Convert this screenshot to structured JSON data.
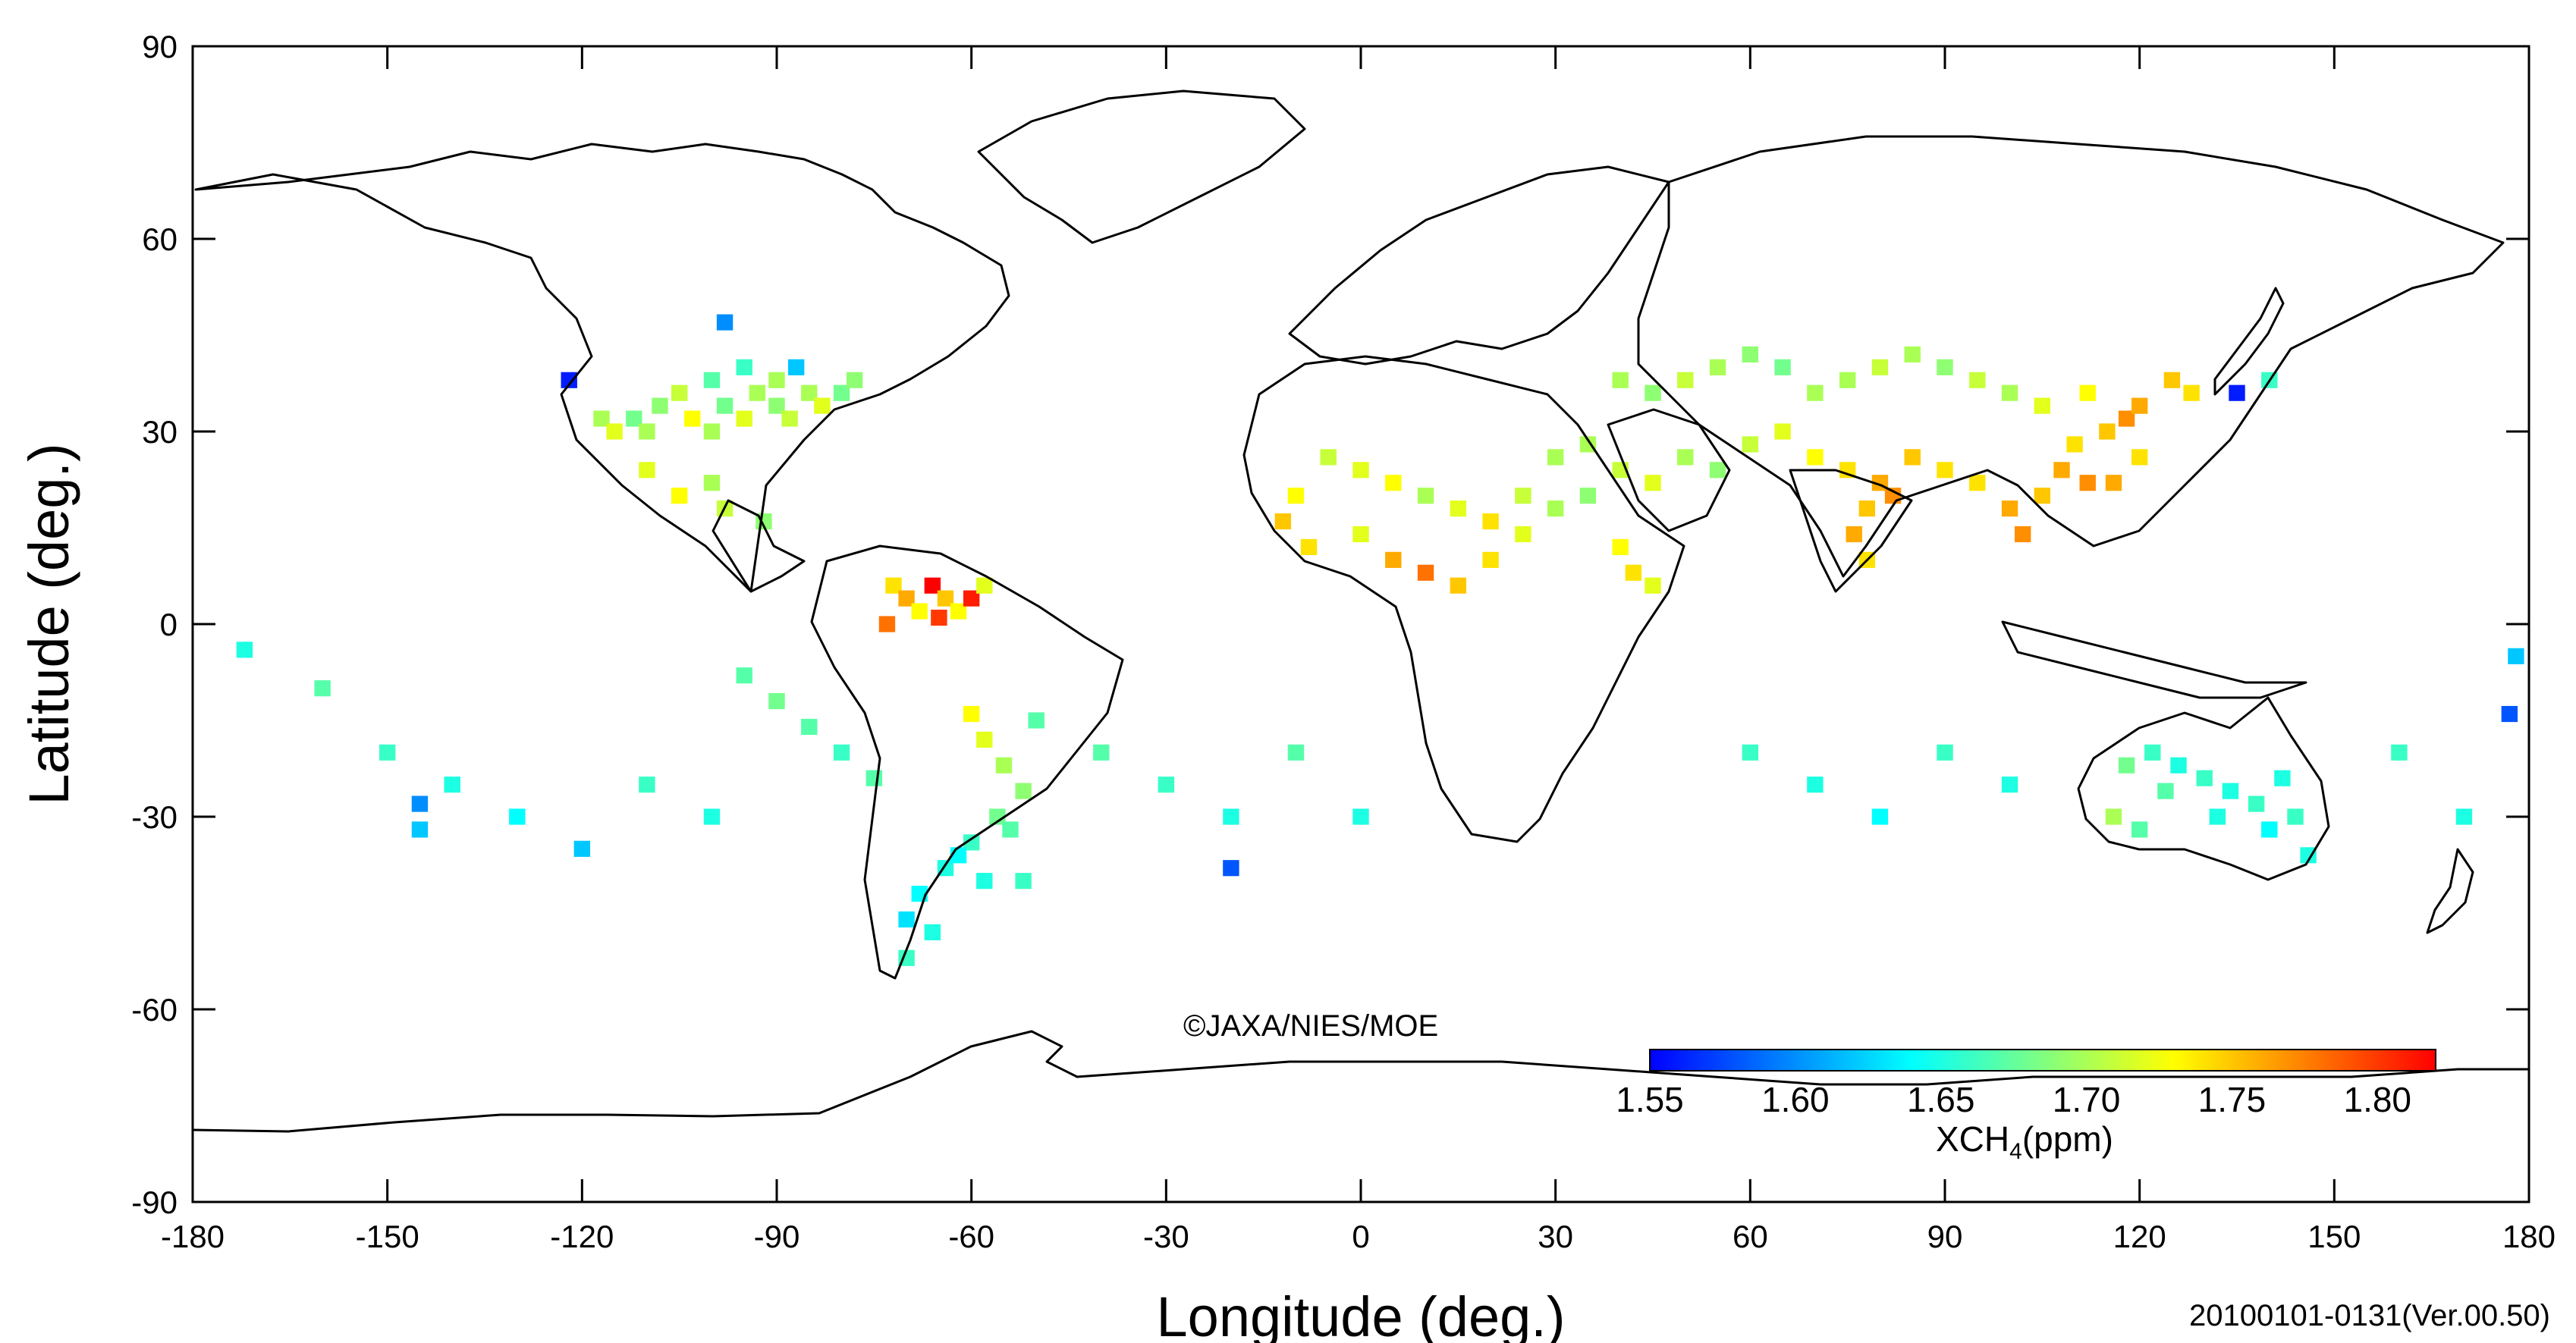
{
  "chart_data": {
    "type": "heatmap",
    "title": "",
    "xlabel": "Longitude (deg.)",
    "ylabel": "Latitude (deg.)",
    "xlim": [
      -180,
      180
    ],
    "ylim": [
      -90,
      90
    ],
    "x_ticks": [
      "-180",
      "-150",
      "-120",
      "-90",
      "-60",
      "-30",
      "0",
      "30",
      "60",
      "90",
      "120",
      "150",
      "180"
    ],
    "y_ticks": [
      "90",
      "60",
      "30",
      "0",
      "-30",
      "-60",
      "-90"
    ],
    "colorbar": {
      "label_main": "XCH",
      "label_sub": "4",
      "label_unit": "(ppm)",
      "range": [
        1.55,
        1.82
      ],
      "tick_labels": [
        "1.55",
        "1.60",
        "1.65",
        "1.70",
        "1.75",
        "1.80"
      ],
      "colors": [
        "#0000ff",
        "#0080ff",
        "#00ffff",
        "#80ff80",
        "#ffff00",
        "#ff8000",
        "#ff0000"
      ]
    },
    "copyright": "©JAXA/NIES/MOE",
    "period_label": "20100101-0131(Ver.00.50)",
    "grid_cell_deg": 2.5,
    "cells": [
      [
        -117,
        32,
        1.7
      ],
      [
        -115,
        30,
        1.72
      ],
      [
        -112,
        32,
        1.68
      ],
      [
        -110,
        30,
        1.7
      ],
      [
        -108,
        34,
        1.69
      ],
      [
        -105,
        36,
        1.71
      ],
      [
        -103,
        32,
        1.73
      ],
      [
        -100,
        30,
        1.7
      ],
      [
        -98,
        34,
        1.68
      ],
      [
        -95,
        32,
        1.72
      ],
      [
        -93,
        36,
        1.7
      ],
      [
        -90,
        34,
        1.69
      ],
      [
        -88,
        32,
        1.71
      ],
      [
        -85,
        36,
        1.7
      ],
      [
        -83,
        34,
        1.72
      ],
      [
        -80,
        36,
        1.68
      ],
      [
        -78,
        38,
        1.69
      ],
      [
        -100,
        38,
        1.67
      ],
      [
        -95,
        40,
        1.66
      ],
      [
        -90,
        38,
        1.7
      ],
      [
        -110,
        24,
        1.72
      ],
      [
        -105,
        20,
        1.73
      ],
      [
        -100,
        22,
        1.7
      ],
      [
        -98,
        18,
        1.71
      ],
      [
        -92,
        16,
        1.69
      ],
      [
        -122,
        38,
        1.56
      ],
      [
        -98,
        47,
        1.6
      ],
      [
        -87,
        40,
        1.62
      ],
      [
        -72,
        6,
        1.74
      ],
      [
        -70,
        4,
        1.76
      ],
      [
        -68,
        2,
        1.73
      ],
      [
        -66,
        6,
        1.82
      ],
      [
        -64,
        4,
        1.75
      ],
      [
        -62,
        2,
        1.73
      ],
      [
        -60,
        4,
        1.81
      ],
      [
        -58,
        6,
        1.72
      ],
      [
        -73,
        0,
        1.78
      ],
      [
        -65,
        1,
        1.8
      ],
      [
        -60,
        -14,
        1.73
      ],
      [
        -58,
        -18,
        1.72
      ],
      [
        -55,
        -22,
        1.7
      ],
      [
        -52,
        -26,
        1.69
      ],
      [
        -56,
        -30,
        1.68
      ],
      [
        -60,
        -34,
        1.66
      ],
      [
        -64,
        -38,
        1.65
      ],
      [
        -68,
        -42,
        1.64
      ],
      [
        -70,
        -46,
        1.63
      ],
      [
        -66,
        -48,
        1.65
      ],
      [
        -70,
        -52,
        1.66
      ],
      [
        -62,
        -36,
        1.64
      ],
      [
        -58,
        -40,
        1.65
      ],
      [
        -54,
        -32,
        1.67
      ],
      [
        -52,
        -40,
        1.66
      ],
      [
        -5,
        26,
        1.71
      ],
      [
        0,
        24,
        1.72
      ],
      [
        5,
        22,
        1.73
      ],
      [
        10,
        20,
        1.7
      ],
      [
        15,
        18,
        1.72
      ],
      [
        20,
        16,
        1.74
      ],
      [
        -10,
        20,
        1.73
      ],
      [
        -12,
        16,
        1.75
      ],
      [
        -8,
        12,
        1.74
      ],
      [
        0,
        14,
        1.72
      ],
      [
        5,
        10,
        1.76
      ],
      [
        10,
        8,
        1.78
      ],
      [
        15,
        6,
        1.75
      ],
      [
        20,
        10,
        1.74
      ],
      [
        25,
        14,
        1.72
      ],
      [
        30,
        18,
        1.7
      ],
      [
        35,
        20,
        1.69
      ],
      [
        40,
        12,
        1.73
      ],
      [
        42,
        8,
        1.74
      ],
      [
        45,
        6,
        1.72
      ],
      [
        25,
        20,
        1.71
      ],
      [
        30,
        26,
        1.7
      ],
      [
        35,
        28,
        1.7
      ],
      [
        40,
        24,
        1.71
      ],
      [
        45,
        22,
        1.72
      ],
      [
        50,
        26,
        1.7
      ],
      [
        55,
        24,
        1.69
      ],
      [
        60,
        28,
        1.71
      ],
      [
        65,
        30,
        1.72
      ],
      [
        70,
        26,
        1.73
      ],
      [
        75,
        24,
        1.74
      ],
      [
        80,
        22,
        1.76
      ],
      [
        85,
        26,
        1.75
      ],
      [
        90,
        24,
        1.74
      ],
      [
        78,
        18,
        1.75
      ],
      [
        76,
        14,
        1.76
      ],
      [
        78,
        10,
        1.74
      ],
      [
        82,
        20,
        1.77
      ],
      [
        95,
        22,
        1.74
      ],
      [
        100,
        18,
        1.76
      ],
      [
        102,
        14,
        1.77
      ],
      [
        105,
        20,
        1.75
      ],
      [
        108,
        24,
        1.76
      ],
      [
        110,
        28,
        1.74
      ],
      [
        115,
        30,
        1.75
      ],
      [
        118,
        32,
        1.77
      ],
      [
        120,
        34,
        1.76
      ],
      [
        112,
        36,
        1.73
      ],
      [
        105,
        34,
        1.72
      ],
      [
        100,
        36,
        1.7
      ],
      [
        95,
        38,
        1.71
      ],
      [
        90,
        40,
        1.69
      ],
      [
        85,
        42,
        1.7
      ],
      [
        80,
        40,
        1.71
      ],
      [
        75,
        38,
        1.7
      ],
      [
        70,
        36,
        1.7
      ],
      [
        65,
        40,
        1.68
      ],
      [
        60,
        42,
        1.69
      ],
      [
        55,
        40,
        1.7
      ],
      [
        50,
        38,
        1.71
      ],
      [
        45,
        36,
        1.69
      ],
      [
        40,
        38,
        1.7
      ],
      [
        125,
        38,
        1.75
      ],
      [
        128,
        36,
        1.74
      ],
      [
        135,
        36,
        1.56
      ],
      [
        140,
        38,
        1.66
      ],
      [
        120,
        26,
        1.74
      ],
      [
        116,
        22,
        1.76
      ],
      [
        112,
        22,
        1.77
      ],
      [
        122,
        -20,
        1.66
      ],
      [
        126,
        -22,
        1.65
      ],
      [
        130,
        -24,
        1.66
      ],
      [
        134,
        -26,
        1.65
      ],
      [
        138,
        -28,
        1.66
      ],
      [
        142,
        -24,
        1.65
      ],
      [
        144,
        -30,
        1.66
      ],
      [
        140,
        -32,
        1.64
      ],
      [
        132,
        -30,
        1.65
      ],
      [
        124,
        -26,
        1.67
      ],
      [
        118,
        -22,
        1.68
      ],
      [
        116,
        -30,
        1.7
      ],
      [
        120,
        -32,
        1.67
      ],
      [
        146,
        -36,
        1.65
      ],
      [
        -172,
        -4,
        1.65
      ],
      [
        -145,
        -28,
        1.6
      ],
      [
        -145,
        -32,
        1.62
      ],
      [
        -120,
        -35,
        1.62
      ],
      [
        -20,
        -38,
        1.58
      ],
      [
        177,
        -14,
        1.58
      ],
      [
        178,
        -5,
        1.62
      ],
      [
        -95,
        -8,
        1.67
      ],
      [
        -90,
        -12,
        1.68
      ],
      [
        -85,
        -16,
        1.67
      ],
      [
        -80,
        -20,
        1.66
      ],
      [
        -75,
        -24,
        1.67
      ],
      [
        -160,
        -10,
        1.67
      ],
      [
        -150,
        -20,
        1.66
      ],
      [
        -140,
        -25,
        1.65
      ],
      [
        -130,
        -30,
        1.64
      ],
      [
        -110,
        -25,
        1.66
      ],
      [
        -100,
        -30,
        1.65
      ],
      [
        -50,
        -15,
        1.67
      ],
      [
        -40,
        -20,
        1.67
      ],
      [
        -30,
        -25,
        1.66
      ],
      [
        -20,
        -30,
        1.65
      ],
      [
        -10,
        -20,
        1.67
      ],
      [
        0,
        -30,
        1.65
      ],
      [
        60,
        -20,
        1.66
      ],
      [
        70,
        -25,
        1.65
      ],
      [
        80,
        -30,
        1.64
      ],
      [
        90,
        -20,
        1.66
      ],
      [
        100,
        -25,
        1.65
      ],
      [
        160,
        -20,
        1.66
      ],
      [
        170,
        -30,
        1.65
      ]
    ]
  }
}
